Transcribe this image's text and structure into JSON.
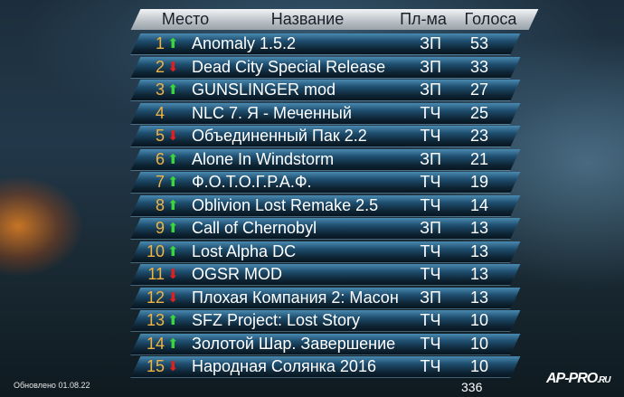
{
  "header": {
    "place": "Место",
    "name": "Название",
    "platform": "Пл-ма",
    "votes": "Голоса"
  },
  "colors": {
    "rank": "#f0b444",
    "up": "#3bd63b",
    "down": "#e02020"
  },
  "rows": [
    {
      "rank": "1",
      "trend": "up",
      "name": "Anomaly 1.5.2",
      "platform": "ЗП",
      "votes": "53"
    },
    {
      "rank": "2",
      "trend": "down",
      "name": "Dead City Special Release",
      "platform": "ЗП",
      "votes": "33"
    },
    {
      "rank": "3",
      "trend": "up",
      "name": "GUNSLINGER mod",
      "platform": "ЗП",
      "votes": "27"
    },
    {
      "rank": "4",
      "trend": "none",
      "name": "NLC 7. Я - Меченный",
      "platform": "ТЧ",
      "votes": "25"
    },
    {
      "rank": "5",
      "trend": "down",
      "name": "Объединенный Пак 2.2",
      "platform": "ТЧ",
      "votes": "23"
    },
    {
      "rank": "6",
      "trend": "up",
      "name": "Alone In Windstorm",
      "platform": "ЗП",
      "votes": "21"
    },
    {
      "rank": "7",
      "trend": "up",
      "name": "Ф.О.Т.О.Г.Р.А.Ф.",
      "platform": "ТЧ",
      "votes": "19"
    },
    {
      "rank": "8",
      "trend": "up",
      "name": "Oblivion Lost Remake 2.5",
      "platform": "ТЧ",
      "votes": "14"
    },
    {
      "rank": "9",
      "trend": "up",
      "name": "Call of Chernobyl",
      "platform": "ЗП",
      "votes": "13"
    },
    {
      "rank": "10",
      "trend": "up",
      "name": "Lost Alpha DC",
      "platform": "ТЧ",
      "votes": "13"
    },
    {
      "rank": "11",
      "trend": "down",
      "name": "OGSR MOD",
      "platform": "ТЧ",
      "votes": "13"
    },
    {
      "rank": "12",
      "trend": "down",
      "name": "Плохая Компания 2: Масон",
      "platform": "ЗП",
      "votes": "13"
    },
    {
      "rank": "13",
      "trend": "up",
      "name": "SFZ Project: Lost Story",
      "platform": "ТЧ",
      "votes": "10"
    },
    {
      "rank": "14",
      "trend": "up",
      "name": "Золотой Шар. Завершение",
      "platform": "ТЧ",
      "votes": "10"
    },
    {
      "rank": "15",
      "trend": "down",
      "name": "Народная Солянка 2016",
      "platform": "ТЧ",
      "votes": "10"
    }
  ],
  "total": "336",
  "updated": "Обновлено 01.08.22",
  "logo": {
    "main": "AP-PRO",
    "suffix": ".RU"
  }
}
